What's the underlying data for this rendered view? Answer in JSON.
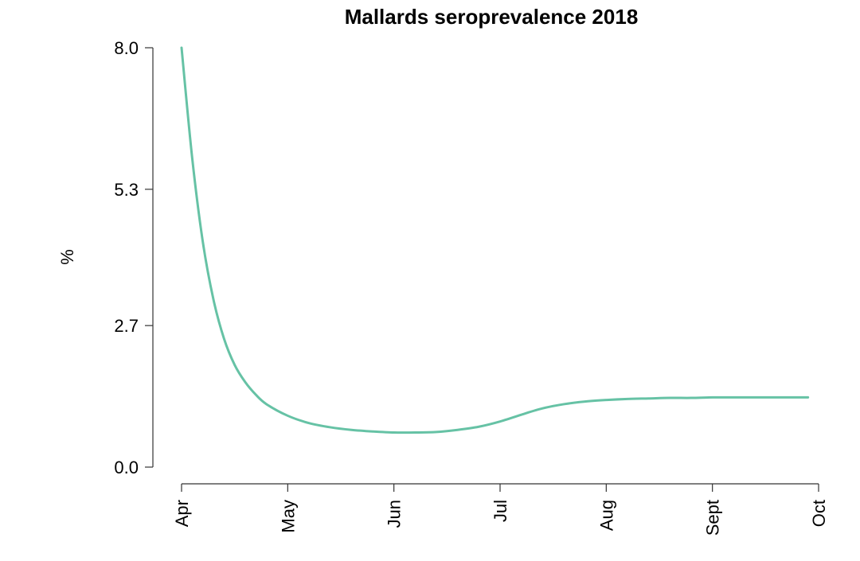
{
  "chart_data": {
    "type": "line",
    "title": "Mallards seroprevalence 2018",
    "xlabel": "",
    "ylabel": "%",
    "x_ticks": [
      "Apr",
      "May",
      "Jun",
      "Jul",
      "Aug",
      "Sept",
      "Oct"
    ],
    "y_ticks": [
      "0.0",
      "2.7",
      "5.3",
      "8.0"
    ],
    "y_tick_values": [
      0.0,
      2.7,
      5.3,
      8.0
    ],
    "ylim": [
      0,
      8.0
    ],
    "grid": false,
    "line_color": "#66c2a5",
    "series": [
      {
        "x": [
          0.0,
          0.1,
          0.2,
          0.3,
          0.4,
          0.5,
          0.6,
          0.7,
          0.8,
          1.0,
          1.2,
          1.4,
          1.6,
          1.8,
          2.0,
          2.2,
          2.4,
          2.6,
          2.8,
          3.0,
          3.2,
          3.4,
          3.6,
          3.8,
          4.0,
          4.2,
          4.4,
          4.6,
          4.8,
          5.0,
          5.2,
          5.4,
          5.6,
          5.8,
          5.9
        ],
        "y": [
          8.0,
          5.9,
          4.3,
          3.2,
          2.45,
          1.95,
          1.62,
          1.38,
          1.2,
          0.98,
          0.84,
          0.76,
          0.71,
          0.68,
          0.66,
          0.66,
          0.67,
          0.71,
          0.77,
          0.87,
          1.0,
          1.12,
          1.2,
          1.25,
          1.28,
          1.3,
          1.31,
          1.32,
          1.32,
          1.33,
          1.33,
          1.33,
          1.33,
          1.33,
          1.33
        ]
      }
    ]
  }
}
